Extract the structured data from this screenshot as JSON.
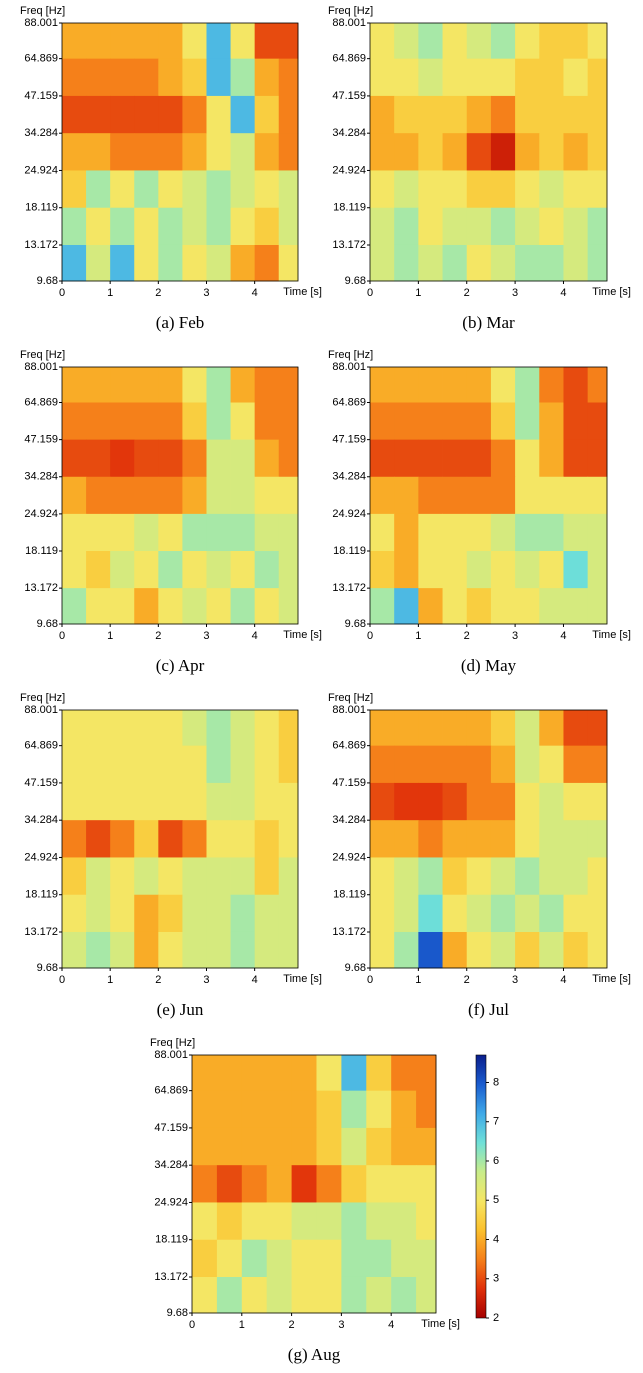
{
  "chart_data": [
    {
      "type": "heatmap",
      "caption": "(a)  Feb",
      "ylabel": "Freq [Hz]",
      "xlabel": "Time [s]",
      "log_y": true,
      "ylim": [
        9.68,
        88.001
      ],
      "yticks": [
        9.68,
        13.172,
        18.119,
        24.924,
        34.284,
        47.159,
        64.869,
        88.001
      ],
      "xlim": [
        0,
        4.9
      ],
      "xticks": [
        0,
        1,
        2,
        3,
        4
      ],
      "xbins": [
        0,
        0.5,
        1,
        1.5,
        2,
        2.5,
        3,
        3.5,
        4,
        4.5,
        4.9
      ],
      "z": [
        [
          4,
          4,
          4,
          4,
          4,
          5,
          7,
          5,
          3,
          3
        ],
        [
          3.5,
          3.5,
          3.5,
          3.5,
          4,
          4.5,
          7,
          6,
          4,
          3.5
        ],
        [
          3,
          3,
          3,
          3,
          3,
          3.5,
          5,
          7,
          4.5,
          3.5
        ],
        [
          4,
          4,
          3.5,
          3.5,
          3.5,
          4,
          5,
          5.5,
          4,
          3.5
        ],
        [
          4.5,
          6,
          5,
          6,
          5,
          5.5,
          6,
          5.5,
          5,
          5.5
        ],
        [
          6,
          5,
          6,
          5,
          6,
          5.5,
          6,
          5,
          4.5,
          5.5
        ],
        [
          7,
          5.5,
          7,
          5,
          6,
          5,
          5.5,
          4,
          3.5,
          5
        ]
      ]
    },
    {
      "type": "heatmap",
      "caption": "(b)  Mar",
      "ylabel": "Freq [Hz]",
      "xlabel": "Time [s]",
      "log_y": true,
      "ylim": [
        9.68,
        88.001
      ],
      "yticks": [
        9.68,
        13.172,
        18.119,
        24.924,
        34.284,
        47.159,
        64.869,
        88.001
      ],
      "xlim": [
        0,
        4.9
      ],
      "xticks": [
        0,
        1,
        2,
        3,
        4
      ],
      "xbins": [
        0,
        0.5,
        1,
        1.5,
        2,
        2.5,
        3,
        3.5,
        4,
        4.5,
        4.9
      ],
      "z": [
        [
          5,
          5.5,
          6,
          5,
          5.5,
          6,
          5,
          4.5,
          4.5,
          5
        ],
        [
          5,
          5,
          5.5,
          5,
          5,
          5,
          4.5,
          4.5,
          5,
          4.5
        ],
        [
          4,
          4.5,
          4.5,
          4.5,
          4,
          3.5,
          4.5,
          4.5,
          4.5,
          4.5
        ],
        [
          4,
          4,
          4.5,
          4,
          3,
          2.5,
          4,
          4.5,
          4,
          4.5
        ],
        [
          5,
          5.5,
          5,
          5,
          4.5,
          4.5,
          5,
          5.5,
          5,
          5
        ],
        [
          5.5,
          6,
          5,
          5.5,
          5.5,
          6,
          5.5,
          5,
          5.5,
          6
        ],
        [
          5.5,
          6,
          5.5,
          6,
          5,
          5.5,
          6,
          6,
          5.5,
          6
        ]
      ]
    },
    {
      "type": "heatmap",
      "caption": "(c)  Apr",
      "ylabel": "Freq [Hz]",
      "xlabel": "Time [s]",
      "log_y": true,
      "ylim": [
        9.68,
        88.001
      ],
      "yticks": [
        9.68,
        13.172,
        18.119,
        24.924,
        34.284,
        47.159,
        64.869,
        88.001
      ],
      "xlim": [
        0,
        4.9
      ],
      "xticks": [
        0,
        1,
        2,
        3,
        4
      ],
      "xbins": [
        0,
        0.5,
        1,
        1.5,
        2,
        2.5,
        3,
        3.5,
        4,
        4.5,
        4.9
      ],
      "z": [
        [
          4,
          4,
          4,
          4,
          4,
          5,
          6,
          4,
          3.5,
          3.5
        ],
        [
          3.5,
          3.5,
          3.5,
          3.5,
          3.5,
          4.5,
          6,
          5,
          3.5,
          3.5
        ],
        [
          3,
          3,
          2.8,
          3,
          3,
          3.5,
          5.5,
          5.5,
          4,
          3.5
        ],
        [
          4,
          3.5,
          3.5,
          3.5,
          3.5,
          4,
          5.5,
          5.5,
          5,
          5
        ],
        [
          5,
          5,
          5,
          5.5,
          5,
          6,
          6,
          6,
          5.5,
          5.5
        ],
        [
          5,
          4.5,
          5.5,
          5,
          6,
          5,
          5.5,
          5,
          6,
          5.5
        ],
        [
          6,
          5,
          5,
          4,
          5,
          5.5,
          5,
          6,
          5,
          5.5
        ]
      ]
    },
    {
      "type": "heatmap",
      "caption": "(d)  May",
      "ylabel": "Freq [Hz]",
      "xlabel": "Time [s]",
      "log_y": true,
      "ylim": [
        9.68,
        88.001
      ],
      "yticks": [
        9.68,
        13.172,
        18.119,
        24.924,
        34.284,
        47.159,
        64.869,
        88.001
      ],
      "xlim": [
        0,
        4.9
      ],
      "xticks": [
        0,
        1,
        2,
        3,
        4
      ],
      "xbins": [
        0,
        0.5,
        1,
        1.5,
        2,
        2.5,
        3,
        3.5,
        4,
        4.5,
        4.9
      ],
      "z": [
        [
          4,
          4,
          4,
          4,
          4,
          5,
          6,
          3.5,
          3,
          3.5
        ],
        [
          3.5,
          3.5,
          3.5,
          3.5,
          3.5,
          4.5,
          6,
          4,
          3,
          3
        ],
        [
          3,
          3,
          3,
          3,
          3,
          3.5,
          5,
          4,
          3,
          3
        ],
        [
          4,
          4,
          3.5,
          3.5,
          3.5,
          3.5,
          5,
          5,
          5,
          5
        ],
        [
          5,
          4,
          5,
          5,
          5,
          5.5,
          6,
          6,
          5.5,
          5.5
        ],
        [
          4.5,
          4,
          5,
          5,
          5.5,
          5,
          5.5,
          5,
          6.5,
          5.5
        ],
        [
          6,
          7,
          4,
          5,
          4.5,
          5,
          5,
          5.5,
          5.5,
          5.5
        ]
      ]
    },
    {
      "type": "heatmap",
      "caption": "(e)  Jun",
      "ylabel": "Freq [Hz]",
      "xlabel": "Time [s]",
      "log_y": true,
      "ylim": [
        9.68,
        88.001
      ],
      "yticks": [
        9.68,
        13.172,
        18.119,
        24.924,
        34.284,
        47.159,
        64.869,
        88.001
      ],
      "xlim": [
        0,
        4.9
      ],
      "xticks": [
        0,
        1,
        2,
        3,
        4
      ],
      "xbins": [
        0,
        0.5,
        1,
        1.5,
        2,
        2.5,
        3,
        3.5,
        4,
        4.5,
        4.9
      ],
      "z": [
        [
          5,
          5,
          5,
          5,
          5,
          5.5,
          6,
          5.5,
          5,
          4.5
        ],
        [
          5,
          5,
          5,
          5,
          5,
          5,
          6,
          5.5,
          5,
          4.5
        ],
        [
          5,
          5,
          5,
          5,
          5,
          5,
          5.5,
          5.5,
          5,
          5
        ],
        [
          3.5,
          3,
          3.5,
          4.5,
          3,
          3.5,
          5,
          5,
          4.5,
          5
        ],
        [
          4.5,
          5.5,
          5,
          5.5,
          5,
          5.5,
          5.5,
          5.5,
          4.5,
          5.5
        ],
        [
          5,
          5.5,
          5,
          4,
          4.5,
          5.5,
          5.5,
          6,
          5.5,
          5.5
        ],
        [
          5.5,
          6,
          5.5,
          4,
          5,
          5.5,
          5.5,
          6,
          5.5,
          5.5
        ]
      ]
    },
    {
      "type": "heatmap",
      "caption": "(f)  Jul",
      "ylabel": "Freq [Hz]",
      "xlabel": "Time [s]",
      "log_y": true,
      "ylim": [
        9.68,
        88.001
      ],
      "yticks": [
        9.68,
        13.172,
        18.119,
        24.924,
        34.284,
        47.159,
        64.869,
        88.001
      ],
      "xlim": [
        0,
        4.9
      ],
      "xticks": [
        0,
        1,
        2,
        3,
        4
      ],
      "xbins": [
        0,
        0.5,
        1,
        1.5,
        2,
        2.5,
        3,
        3.5,
        4,
        4.5,
        4.9
      ],
      "z": [
        [
          4,
          4,
          4,
          4,
          4,
          4.5,
          5.5,
          4,
          3,
          3
        ],
        [
          3.5,
          3.5,
          3.5,
          3.5,
          3.5,
          4,
          5.5,
          5,
          3.5,
          3.5
        ],
        [
          3,
          2.8,
          2.8,
          3,
          3.5,
          3.5,
          5,
          5.5,
          5,
          5
        ],
        [
          4,
          4,
          3.5,
          4,
          4,
          4,
          5,
          5.5,
          5.5,
          5.5
        ],
        [
          5,
          5.5,
          6,
          4.5,
          5,
          5.5,
          6,
          5.5,
          5.5,
          5
        ],
        [
          5,
          5.5,
          6.5,
          5,
          5.5,
          6,
          5.5,
          6,
          5,
          5
        ],
        [
          5,
          6,
          8,
          4,
          5,
          5.5,
          4.5,
          5.5,
          4.5,
          5
        ]
      ]
    },
    {
      "type": "heatmap",
      "caption": "(g)  Aug",
      "ylabel": "Freq [Hz]",
      "xlabel": "Time [s]",
      "log_y": true,
      "ylim": [
        9.68,
        88.001
      ],
      "yticks": [
        9.68,
        13.172,
        18.119,
        24.924,
        34.284,
        47.159,
        64.869,
        88.001
      ],
      "xlim": [
        0,
        4.9
      ],
      "xticks": [
        0,
        1,
        2,
        3,
        4
      ],
      "xbins": [
        0,
        0.5,
        1,
        1.5,
        2,
        2.5,
        3,
        3.5,
        4,
        4.5,
        4.9
      ],
      "z": [
        [
          4,
          4,
          4,
          4,
          4,
          5,
          7,
          4.5,
          3.5,
          3.5
        ],
        [
          4,
          4,
          4,
          4,
          4,
          4.5,
          6,
          5,
          4,
          3.5
        ],
        [
          4,
          4,
          4,
          4,
          4,
          4.5,
          5.5,
          4.5,
          4,
          4
        ],
        [
          3.5,
          3,
          3.5,
          4,
          2.8,
          3.5,
          4.5,
          5,
          5,
          5
        ],
        [
          5,
          4.5,
          5,
          5,
          5.5,
          5.5,
          6,
          5.5,
          5.5,
          5
        ],
        [
          4.5,
          5,
          6,
          5.5,
          5,
          5,
          6,
          6,
          5.5,
          5.5
        ],
        [
          5,
          6,
          5,
          5.5,
          5,
          5,
          6,
          5.5,
          6,
          5.5
        ]
      ]
    },
    {
      "type": "colorbar",
      "clim": [
        2,
        8.7
      ],
      "cticks": [
        2,
        3,
        4,
        5,
        6,
        7,
        8
      ],
      "colormap": [
        "#a50000",
        "#e0300a",
        "#f57f1a",
        "#fbc02d",
        "#f5e663",
        "#c8ec8a",
        "#6fe0d8",
        "#3fa9e8",
        "#1a5ccf",
        "#0a1e8c"
      ]
    }
  ]
}
